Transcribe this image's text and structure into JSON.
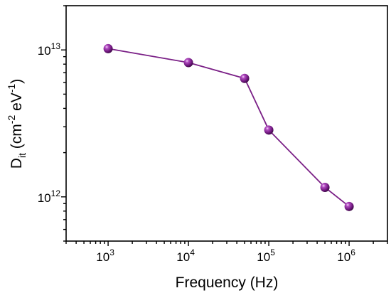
{
  "chart_data": {
    "type": "line",
    "xscale": "log",
    "yscale": "log",
    "xlim": [
      300,
      3000000
    ],
    "ylim": [
      500000000000,
      20000000000000
    ],
    "xticks": [
      {
        "value": 1000,
        "base": "10",
        "exp": "3"
      },
      {
        "value": 10000,
        "base": "10",
        "exp": "4"
      },
      {
        "value": 100000,
        "base": "10",
        "exp": "5"
      },
      {
        "value": 1000000,
        "base": "10",
        "exp": "6"
      }
    ],
    "yticks": [
      {
        "value": 1000000000000,
        "base": "10",
        "exp": "12"
      },
      {
        "value": 10000000000000,
        "base": "10",
        "exp": "13"
      }
    ],
    "xlabel": "Frequency (Hz)",
    "ylabel": {
      "symbol": "D",
      "subscript": "it",
      "open": " (cm",
      "exp1": "-2",
      "mid": " eV",
      "exp2": "-1",
      "close": ")"
    },
    "grid": false,
    "series": [
      {
        "color": "#7a1f86",
        "marker": "sphere",
        "points": [
          {
            "x": 1000,
            "y": 10200000000000
          },
          {
            "x": 10000,
            "y": 8200000000000
          },
          {
            "x": 50000,
            "y": 6400000000000
          },
          {
            "x": 100000,
            "y": 2850000000000
          },
          {
            "x": 500000,
            "y": 1160000000000
          },
          {
            "x": 1000000,
            "y": 860000000000
          }
        ]
      }
    ]
  }
}
